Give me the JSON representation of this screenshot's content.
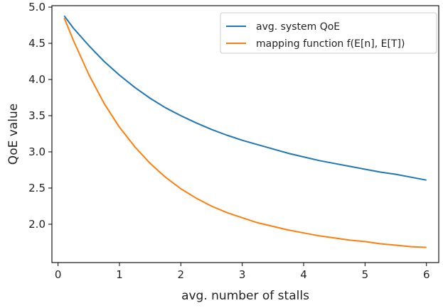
{
  "chart_data": {
    "type": "line",
    "title": "",
    "xlabel": "avg. number of stalls",
    "ylabel": "QoE value",
    "xlim": [
      -0.1,
      6.2
    ],
    "ylim": [
      1.47,
      5.02
    ],
    "xticks": [
      0,
      1,
      2,
      3,
      4,
      5,
      6
    ],
    "xtick_labels": [
      "0",
      "1",
      "2",
      "3",
      "4",
      "5",
      "6"
    ],
    "yticks": [
      2.0,
      2.5,
      3.0,
      3.5,
      4.0,
      4.5,
      5.0
    ],
    "ytick_labels": [
      "2.0",
      "2.5",
      "3.0",
      "3.5",
      "4.0",
      "4.5",
      "5.0"
    ],
    "grid": false,
    "legend_position": "top-right",
    "series": [
      {
        "name": "avg. system QoE",
        "color": "#1f77b4",
        "x": [
          0.1,
          0.25,
          0.5,
          0.75,
          1.0,
          1.25,
          1.5,
          1.75,
          2.0,
          2.25,
          2.5,
          2.75,
          3.0,
          3.25,
          3.5,
          3.75,
          4.0,
          4.25,
          4.5,
          4.75,
          5.0,
          5.25,
          5.5,
          5.75,
          6.0
        ],
        "y": [
          4.88,
          4.71,
          4.47,
          4.25,
          4.06,
          3.89,
          3.74,
          3.61,
          3.5,
          3.4,
          3.31,
          3.23,
          3.16,
          3.1,
          3.04,
          2.98,
          2.93,
          2.88,
          2.84,
          2.8,
          2.76,
          2.72,
          2.69,
          2.65,
          2.61
        ]
      },
      {
        "name": "mapping function f(E[n], E[T])",
        "color": "#ff7f0e",
        "x": [
          0.1,
          0.25,
          0.5,
          0.75,
          1.0,
          1.25,
          1.5,
          1.75,
          2.0,
          2.25,
          2.5,
          2.75,
          3.0,
          3.25,
          3.5,
          3.75,
          4.0,
          4.25,
          4.5,
          4.75,
          5.0,
          5.25,
          5.5,
          5.75,
          6.0
        ],
        "y": [
          4.85,
          4.54,
          4.07,
          3.67,
          3.34,
          3.07,
          2.84,
          2.65,
          2.49,
          2.36,
          2.25,
          2.16,
          2.09,
          2.02,
          1.97,
          1.92,
          1.88,
          1.84,
          1.81,
          1.78,
          1.76,
          1.73,
          1.71,
          1.69,
          1.68
        ]
      }
    ]
  }
}
